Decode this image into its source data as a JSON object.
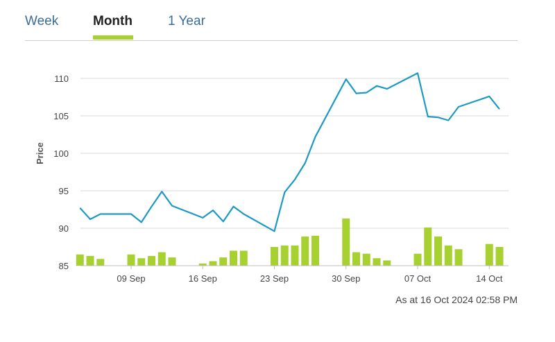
{
  "tabs": [
    {
      "label": "Week",
      "active": false
    },
    {
      "label": "Month",
      "active": true
    },
    {
      "label": "1 Year",
      "active": false
    }
  ],
  "colors": {
    "accent": "#a6d130",
    "line": "#1c9ac2",
    "tab_link": "#3b6c99",
    "grid": "#d9d9d9"
  },
  "timestamp": "As at 16 Oct 2024 02:58 PM",
  "chart_data": {
    "type": "line",
    "ylabel": "Price",
    "xlabel": "",
    "ylim": [
      85,
      112
    ],
    "y_ticks": [
      85,
      90,
      95,
      100,
      105,
      110
    ],
    "x_ticks": [
      "09 Sep",
      "16 Sep",
      "23 Sep",
      "30 Sep",
      "07 Oct",
      "14 Oct"
    ],
    "x_tick_dates": [
      "2024-09-09",
      "2024-09-16",
      "2024-09-23",
      "2024-09-30",
      "2024-10-07",
      "2024-10-14"
    ],
    "grid": true,
    "series": [
      {
        "type": "line",
        "x": [
          "2024-09-04",
          "2024-09-05",
          "2024-09-06",
          "2024-09-09",
          "2024-09-10",
          "2024-09-11",
          "2024-09-12",
          "2024-09-13",
          "2024-09-16",
          "2024-09-17",
          "2024-09-18",
          "2024-09-19",
          "2024-09-20",
          "2024-09-23",
          "2024-09-24",
          "2024-09-25",
          "2024-09-26",
          "2024-09-27",
          "2024-09-30",
          "2024-10-01",
          "2024-10-02",
          "2024-10-03",
          "2024-10-04",
          "2024-10-07",
          "2024-10-08",
          "2024-10-09",
          "2024-10-10",
          "2024-10-11",
          "2024-10-14",
          "2024-10-15"
        ],
        "values": [
          92.7,
          91.2,
          91.9,
          91.9,
          90.8,
          92.9,
          94.9,
          93.0,
          91.4,
          92.4,
          90.9,
          92.9,
          91.9,
          89.6,
          94.8,
          96.5,
          98.7,
          102.2,
          109.9,
          108.0,
          108.1,
          109.0,
          108.6,
          110.7,
          104.9,
          104.8,
          104.4,
          106.2,
          107.6,
          105.9
        ]
      },
      {
        "type": "bar",
        "x": [
          "2024-09-04",
          "2024-09-05",
          "2024-09-06",
          "2024-09-09",
          "2024-09-10",
          "2024-09-11",
          "2024-09-12",
          "2024-09-13",
          "2024-09-16",
          "2024-09-17",
          "2024-09-18",
          "2024-09-19",
          "2024-09-20",
          "2024-09-23",
          "2024-09-24",
          "2024-09-25",
          "2024-09-26",
          "2024-09-27",
          "2024-09-30",
          "2024-10-01",
          "2024-10-02",
          "2024-10-03",
          "2024-10-04",
          "2024-10-07",
          "2024-10-08",
          "2024-10-09",
          "2024-10-10",
          "2024-10-11",
          "2024-10-14",
          "2024-10-15"
        ],
        "values": [
          86.5,
          86.3,
          85.9,
          86.5,
          86.0,
          86.3,
          86.8,
          86.1,
          85.3,
          85.6,
          86.1,
          87.0,
          87.0,
          87.5,
          87.7,
          87.7,
          88.9,
          89.0,
          91.3,
          86.8,
          86.6,
          86.0,
          85.7,
          86.6,
          90.1,
          88.9,
          87.7,
          87.2,
          87.9,
          87.5
        ]
      }
    ]
  }
}
